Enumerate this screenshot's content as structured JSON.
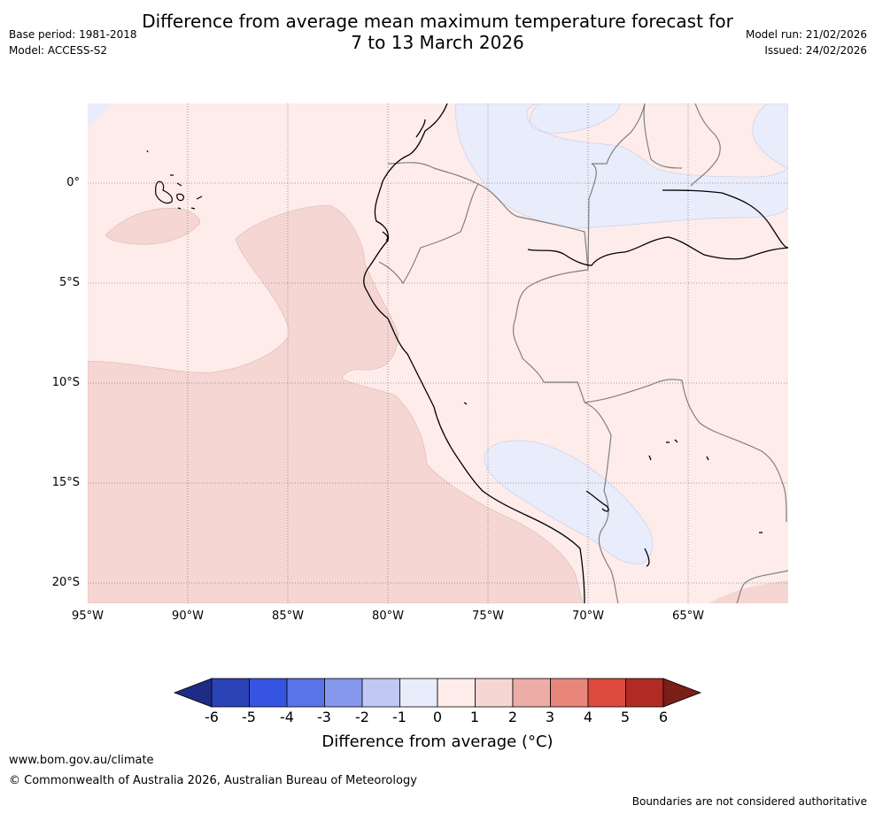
{
  "title": {
    "line1": "Difference from average mean maximum temperature forecast for",
    "line2": "7 to 13 March 2026"
  },
  "meta": {
    "base_period": "Base period: 1981-2018",
    "model": "Model: ACCESS-S2",
    "model_run": "Model run: 21/02/2026",
    "issued": "Issued: 24/02/2026"
  },
  "map": {
    "latitude_labels": [
      "0°",
      "5°S",
      "10°S",
      "15°S",
      "20°S"
    ],
    "longitude_labels": [
      "95°W",
      "90°W",
      "85°W",
      "80°W",
      "75°W",
      "70°W",
      "65°W"
    ],
    "colors": {
      "anomaly_0_1": "#fdecea",
      "anomaly_1_2": "#f6d6d3",
      "anomaly_m1_0": "#e8ecfb",
      "coast": "#000000",
      "border": "#808080",
      "grid": "#808080"
    }
  },
  "colorbar": {
    "ticks": [
      "-6",
      "-5",
      "-4",
      "-3",
      "-2",
      "-1",
      "0",
      "1",
      "2",
      "3",
      "4",
      "5",
      "6"
    ],
    "colors": [
      "#1f2c85",
      "#2b43b6",
      "#3654e3",
      "#5a73e8",
      "#8697ec",
      "#c1c8f4",
      "#e8ecfb",
      "#fdecea",
      "#f6d6d3",
      "#eeaca6",
      "#e8867c",
      "#dc4b3e",
      "#b12a23",
      "#7a1e18"
    ],
    "label": "Difference from average (°C)"
  },
  "footer": {
    "url": "www.bom.gov.au/climate",
    "copyright": "© Commonwealth of Australia 2026, Australian Bureau of Meteorology",
    "disclaimer": "Boundaries are not considered authoritative"
  }
}
